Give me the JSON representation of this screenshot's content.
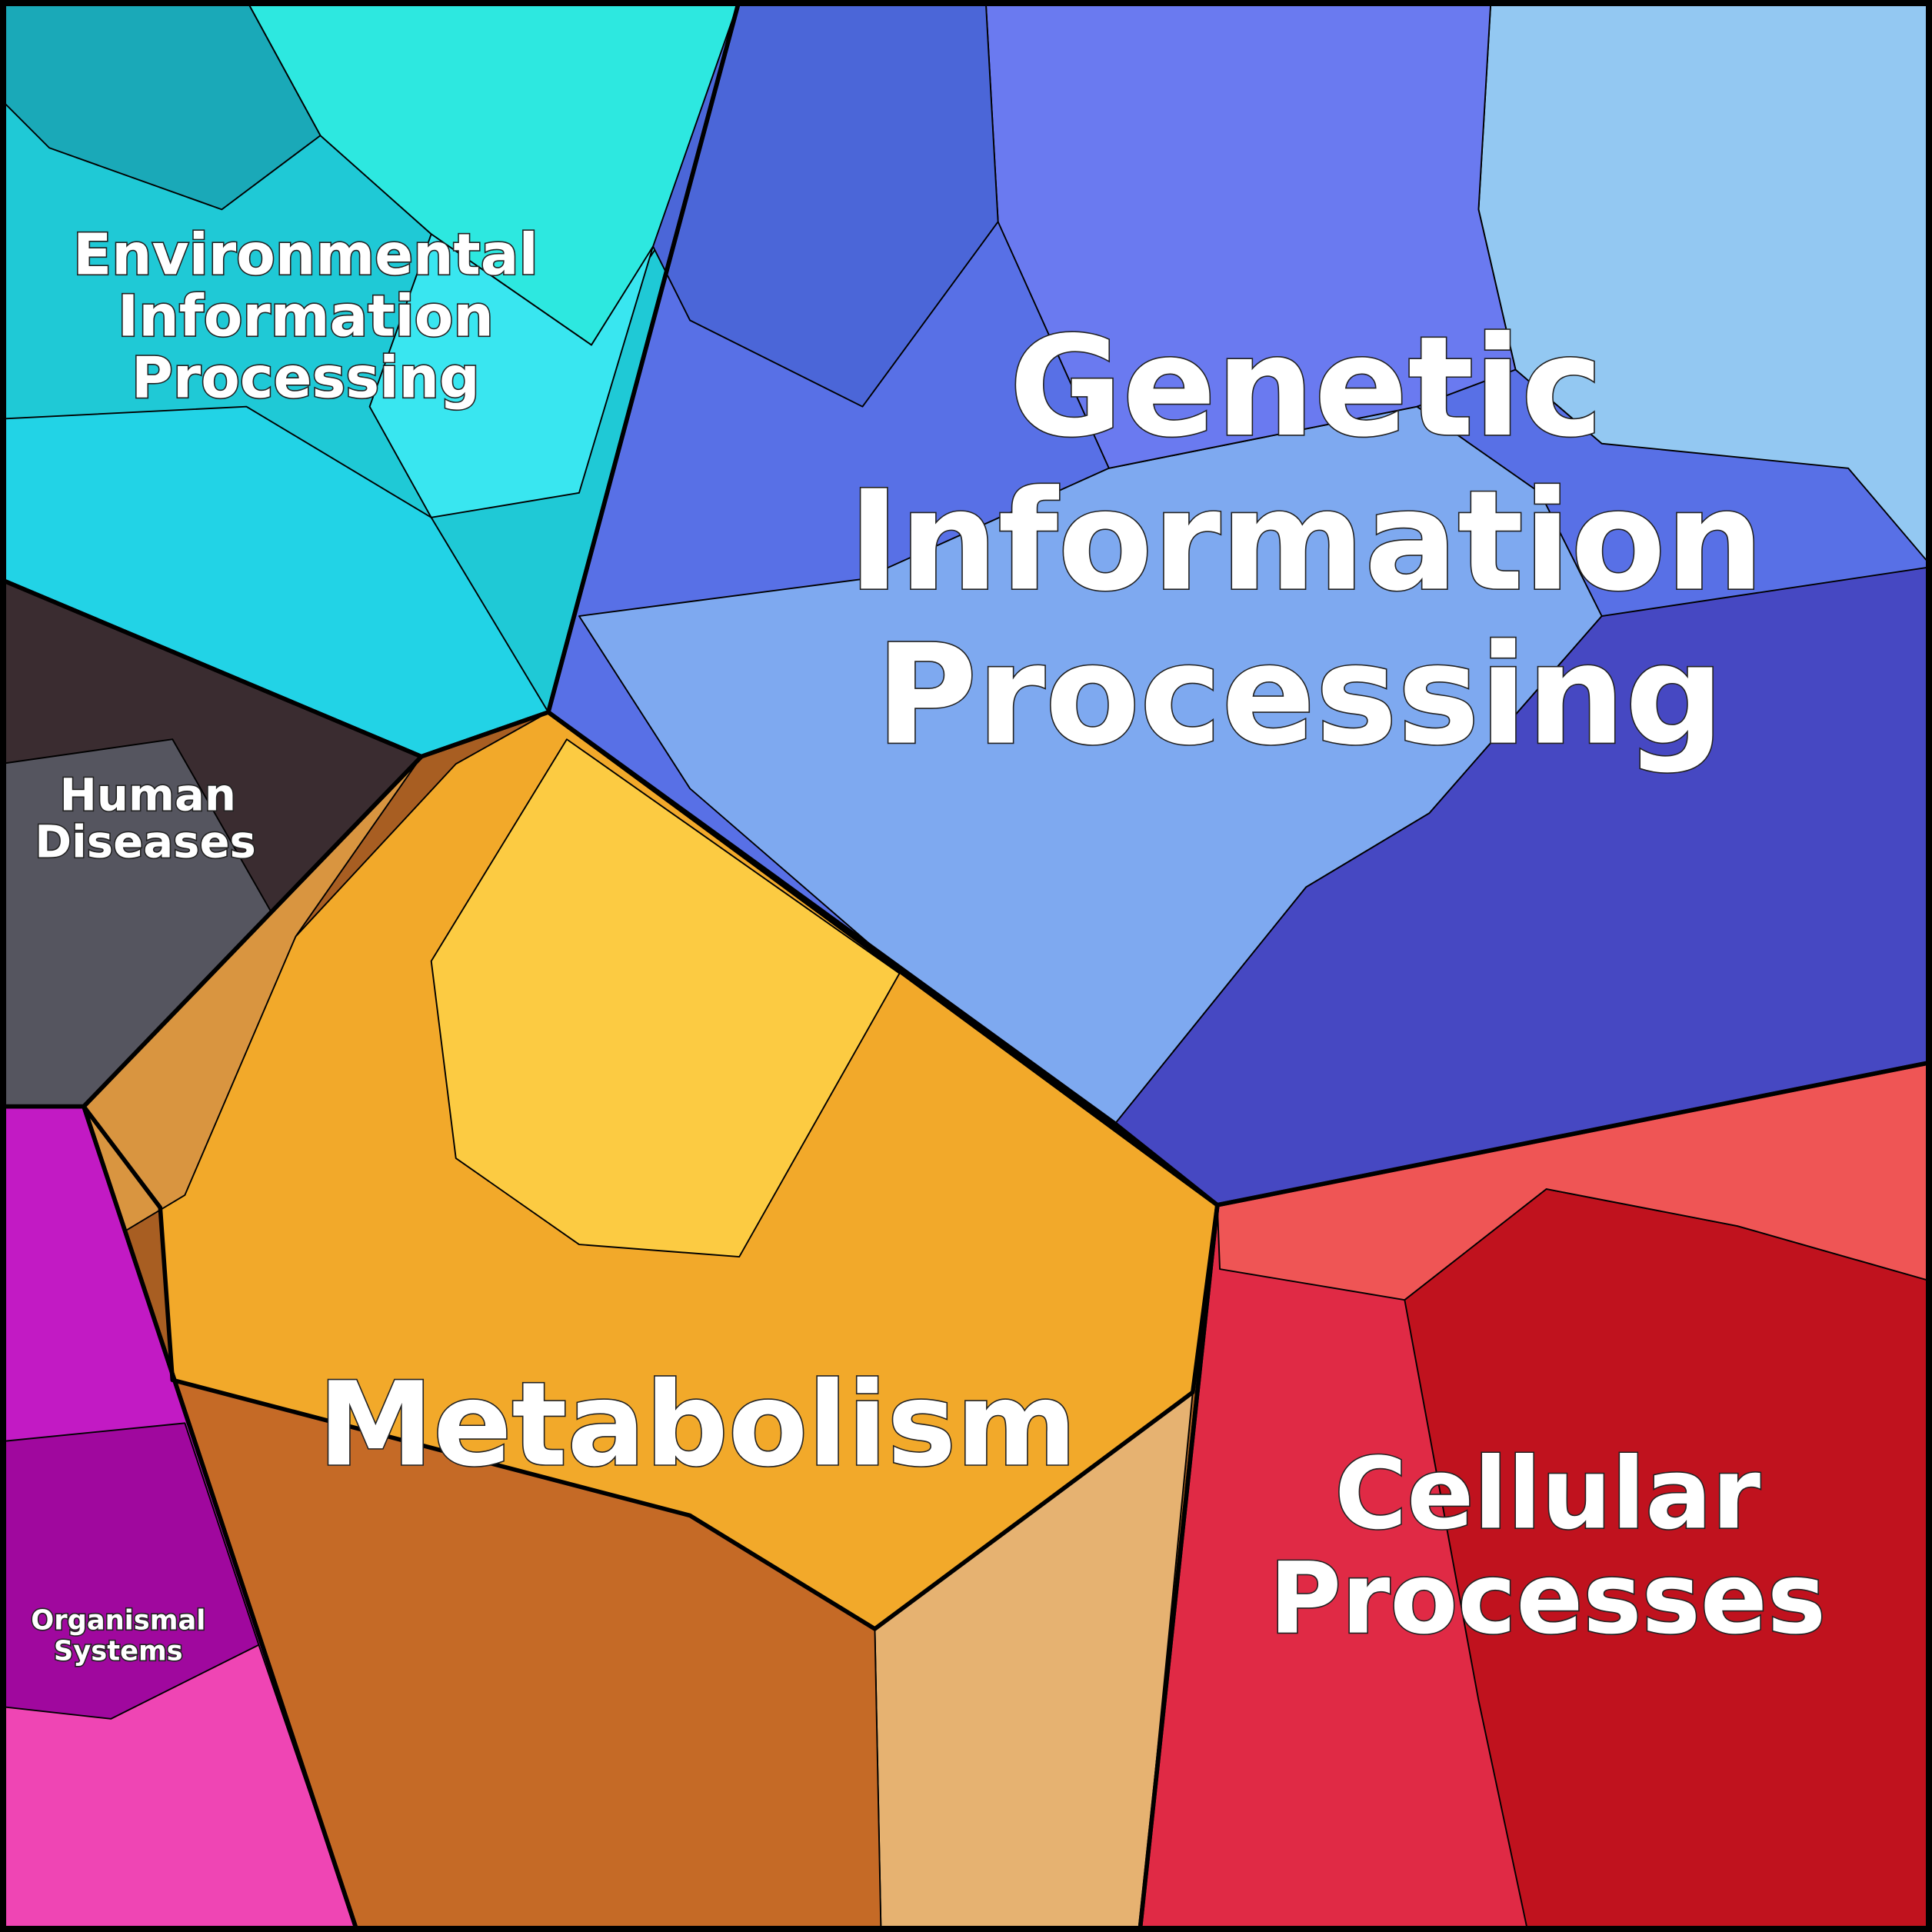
{
  "regions": [
    {
      "label_lines": [
        "Environmental",
        "Information",
        "Processing"
      ]
    },
    {
      "label_lines": [
        "Genetic",
        "Information",
        "Processing"
      ]
    },
    {
      "label_lines": [
        "Human",
        "Diseases"
      ]
    },
    {
      "label_lines": [
        "Metabolism"
      ]
    },
    {
      "label_lines": [
        "Cellular",
        "Processes"
      ]
    },
    {
      "label_lines": [
        "Organismal",
        "Systems"
      ]
    }
  ]
}
